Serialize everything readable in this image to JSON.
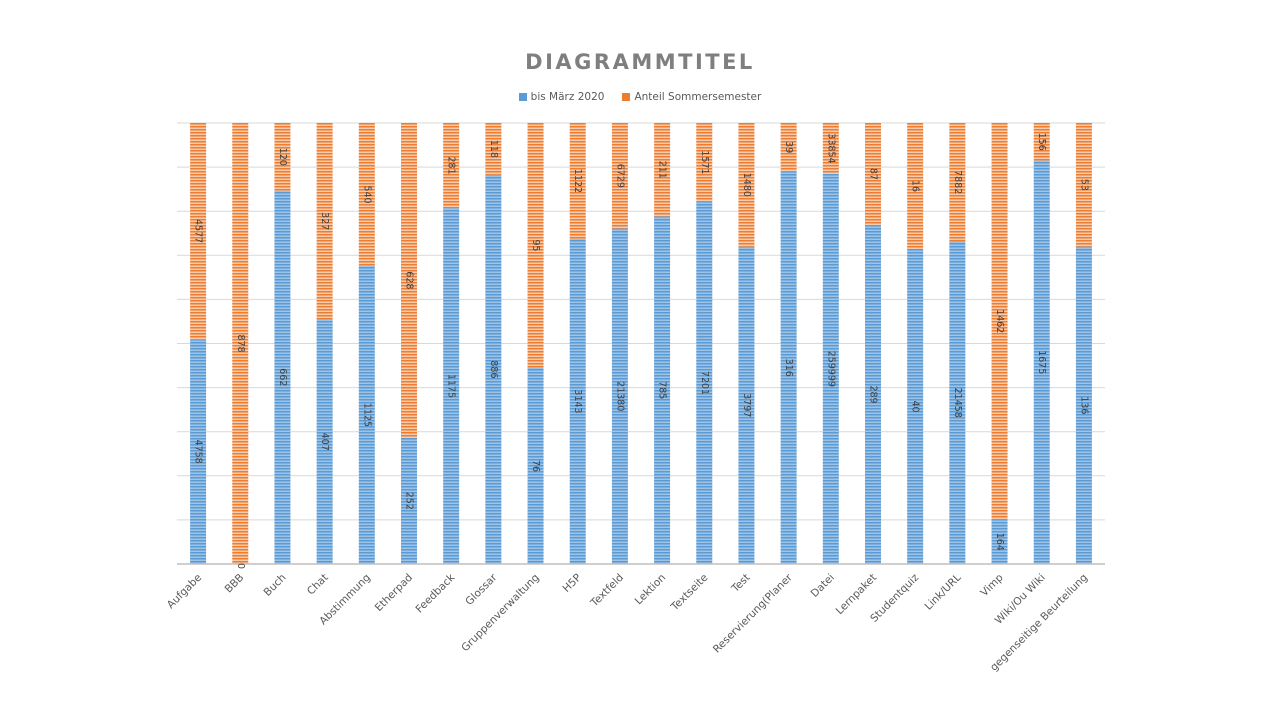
{
  "chart_data": {
    "type": "bar",
    "stacked": "percent",
    "title": "DIAGRAMMTITEL",
    "xlabel": "",
    "ylabel": "",
    "ylim": [
      0,
      100
    ],
    "grid": true,
    "legend_position": "top",
    "categories": [
      "Aufgabe",
      "BBB",
      "Buch",
      "Chat",
      "Abstimmung",
      "Etherpad",
      "Feedback",
      "Glossar",
      "Gruppenverwaltung",
      "H5P",
      "Textfeld",
      "Lektion",
      "Textseite",
      "Test",
      "Reservierung(Planer",
      "Datei",
      "Lernpaket",
      "Studentquiz",
      "Link/URL",
      "Vimp",
      "Wiki/Ou Wiki",
      "gegenseitige Beurteilung"
    ],
    "series": [
      {
        "name": "bis März 2020",
        "color": "#5b9bd5",
        "values": [
          4758,
          0,
          662,
          407,
          1125,
          252,
          1175,
          886,
          76,
          3143,
          21380,
          785,
          7201,
          3797,
          316,
          259999,
          289,
          40,
          21458,
          164,
          1675,
          136
        ]
      },
      {
        "name": "Anteil Sommersemester",
        "color": "#ed7d31",
        "values": [
          4577,
          878,
          120,
          327,
          540,
          628,
          281,
          118,
          95,
          1122,
          6729,
          211,
          1571,
          1480,
          39,
          33854,
          87,
          16,
          7882,
          1462,
          156,
          53
        ]
      }
    ]
  }
}
